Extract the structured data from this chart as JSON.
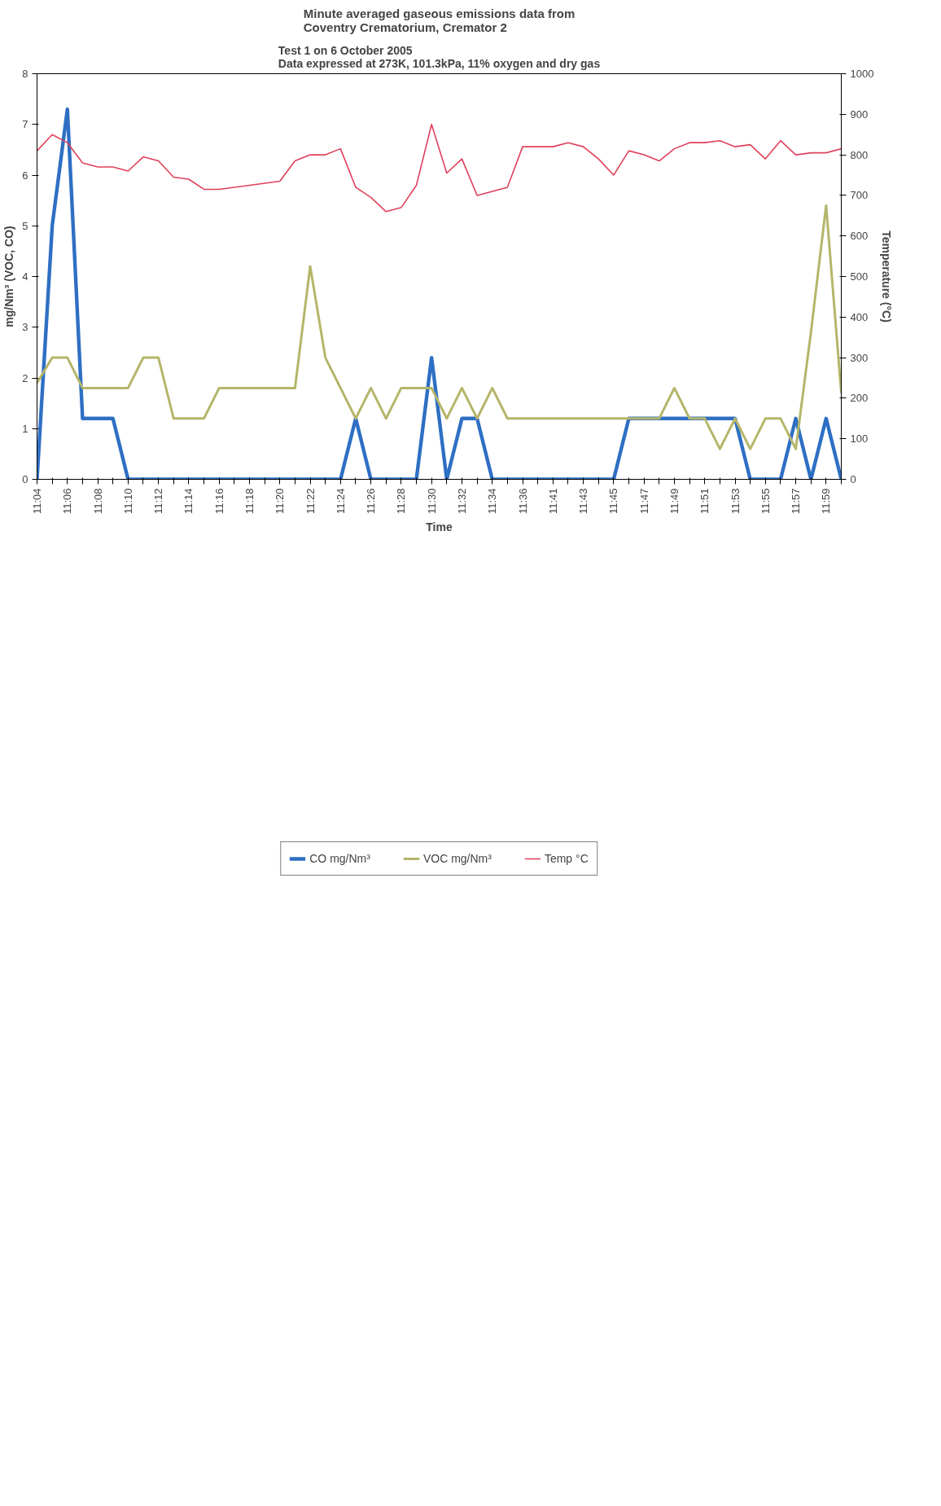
{
  "chart_data": {
    "type": "line",
    "title": "Minute averaged gaseous emissions data from\nCoventry Crematorium, Cremator 2",
    "subtitle": "Test 1 on 6 October 2005\nData expressed at 273K, 101.3kPa, 11% oxygen and dry gas",
    "xlabel": "Time",
    "ylabel": "mg/Nm³ (VOC, CO)",
    "y2label": "Temperature (°C)",
    "categories": [
      "11:04",
      null,
      "11:06",
      null,
      "11:08",
      null,
      "11:10",
      null,
      "11:12",
      null,
      "11:14",
      null,
      "11:16",
      null,
      "11:18",
      null,
      "11:20",
      null,
      "11:22",
      null,
      "11:24",
      null,
      "11:26",
      null,
      "11:28",
      null,
      "11:30",
      null,
      "11:32",
      null,
      "11:34",
      null,
      "11:36",
      null,
      "11:41",
      null,
      "11:43",
      null,
      "11:45",
      null,
      "11:47",
      null,
      "11:49",
      null,
      "11:51",
      null,
      "11:53",
      null,
      "11:55",
      null,
      "11:57",
      null,
      "11:59",
      null
    ],
    "series": [
      {
        "name": "CO mg/Nm³",
        "color": "#2e6fc4",
        "values": [
          0,
          5.0,
          7.3,
          1.2,
          1.2,
          1.2,
          0,
          0,
          0,
          0,
          0,
          0,
          0,
          0,
          0,
          0,
          0,
          0,
          0,
          0,
          0,
          1.2,
          0,
          0,
          0,
          0,
          2.4,
          0,
          1.2,
          1.2,
          0,
          0,
          0,
          0,
          0,
          0,
          0,
          0,
          0,
          1.2,
          1.2,
          1.2,
          1.2,
          1.2,
          1.2,
          1.2,
          1.2,
          0,
          0,
          0,
          1.2,
          0,
          1.2,
          0
        ]
      },
      {
        "name": "VOC mg/Nm³",
        "color": "#b5b56a",
        "values": [
          1.9,
          2.4,
          2.4,
          1.8,
          1.8,
          1.8,
          1.8,
          2.4,
          2.4,
          1.2,
          1.2,
          1.2,
          1.8,
          1.8,
          1.8,
          1.8,
          1.8,
          1.8,
          4.2,
          2.4,
          1.8,
          1.2,
          1.8,
          1.2,
          1.8,
          1.8,
          1.8,
          1.2,
          1.8,
          1.2,
          1.8,
          1.2,
          1.2,
          1.2,
          1.2,
          1.2,
          1.2,
          1.2,
          1.2,
          1.2,
          1.2,
          1.2,
          1.8,
          1.2,
          1.2,
          0.6,
          1.2,
          0.6,
          1.2,
          1.2,
          0.6,
          2.9,
          5.4,
          1.7
        ]
      },
      {
        "name": "Temp °C",
        "color": "#e0405a",
        "axis": "y2",
        "values": [
          810,
          850,
          830,
          780,
          770,
          770,
          760,
          795,
          785,
          745,
          740,
          715,
          715,
          720,
          725,
          730,
          735,
          785,
          800,
          800,
          815,
          720,
          695,
          660,
          670,
          725,
          875,
          755,
          790,
          700,
          710,
          720,
          820,
          820,
          820,
          830,
          820,
          790,
          750,
          810,
          800,
          785,
          815,
          830,
          830,
          835,
          820,
          825,
          790,
          835,
          800,
          805,
          805,
          815
        ]
      }
    ],
    "ylim": [
      0,
      8
    ],
    "yticks": [
      0,
      1,
      2,
      3,
      4,
      5,
      6,
      7,
      8
    ],
    "y2lim": [
      0,
      1000
    ],
    "y2ticks": [
      0,
      100,
      200,
      300,
      400,
      500,
      600,
      700,
      800,
      900,
      1000
    ],
    "legend": "bottom",
    "grid": false,
    "marker": "none",
    "line_style": "solid"
  }
}
